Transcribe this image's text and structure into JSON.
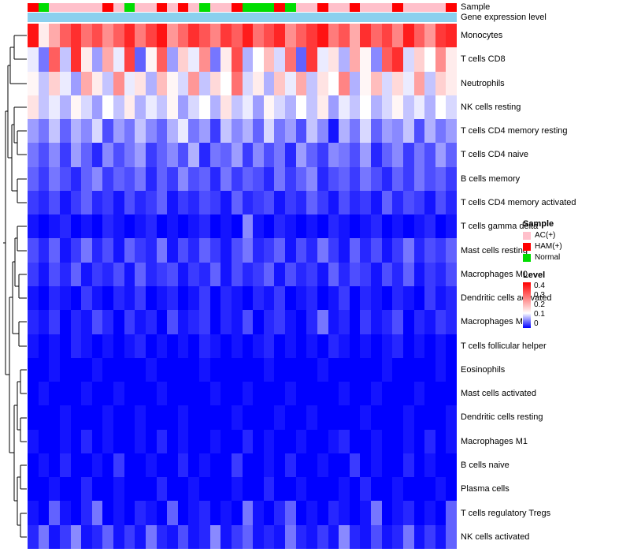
{
  "annotations": {
    "sample_label": "Sample",
    "expression_label": "Gene expression level",
    "expression_bar_color": "#8AD0EE",
    "sample_colors": {
      "AC(+)": "#FFC0CB",
      "HAM(+)": "#FF0000",
      "Normal": "#00DD00"
    }
  },
  "legend": {
    "sample_title": "Sample",
    "sample_items": [
      {
        "label": "AC(+)",
        "color": "#FFC0CB"
      },
      {
        "label": "HAM(+)",
        "color": "#FF0000"
      },
      {
        "label": "Normal",
        "color": "#00DD00"
      }
    ],
    "level_title": "Level",
    "level_ticks": [
      "0.4",
      "0.3",
      "0.2",
      "0.1",
      "0"
    ]
  },
  "chart_data": {
    "type": "heatmap",
    "title": "",
    "n_columns": 40,
    "rows": [
      "Monocytes",
      "T cells CD8",
      "Neutrophils",
      "NK cells resting",
      "T cells CD4 memory resting",
      "T cells CD4 naive",
      "B cells memory",
      "T cells CD4 memory activated",
      "T cells gamma delta",
      "Mast cells resting",
      "Macrophages M0",
      "Dendritic cells activated",
      "Macrophages M2",
      "T cells follicular helper",
      "Eosinophils",
      "Mast cells activated",
      "Dendritic cells resting",
      "Macrophages M1",
      "B cells naive",
      "Plasma cells",
      "T cells regulatory Tregs",
      "NK cells activated"
    ],
    "column_samples": [
      "HAM(+)",
      "Normal",
      "AC(+)",
      "AC(+)",
      "AC(+)",
      "AC(+)",
      "AC(+)",
      "HAM(+)",
      "AC(+)",
      "Normal",
      "AC(+)",
      "AC(+)",
      "HAM(+)",
      "AC(+)",
      "HAM(+)",
      "AC(+)",
      "Normal",
      "AC(+)",
      "AC(+)",
      "HAM(+)",
      "Normal",
      "Normal",
      "Normal",
      "HAM(+)",
      "Normal",
      "AC(+)",
      "AC(+)",
      "HAM(+)",
      "AC(+)",
      "AC(+)",
      "HAM(+)",
      "AC(+)",
      "AC(+)",
      "AC(+)",
      "HAM(+)",
      "AC(+)",
      "AC(+)",
      "AC(+)",
      "AC(+)",
      "HAM(+)"
    ],
    "colormap": {
      "min": 0,
      "mid": 0.13,
      "max": 0.4,
      "min_color": "#0000FF",
      "mid_color": "#FFFFFF",
      "max_color": "#FF0000"
    },
    "values": [
      [
        0.38,
        0.15,
        0.22,
        0.3,
        0.35,
        0.28,
        0.32,
        0.25,
        0.3,
        0.36,
        0.27,
        0.33,
        0.38,
        0.24,
        0.29,
        0.35,
        0.31,
        0.26,
        0.34,
        0.3,
        0.37,
        0.28,
        0.32,
        0.36,
        0.25,
        0.3,
        0.34,
        0.38,
        0.27,
        0.31,
        0.22,
        0.35,
        0.29,
        0.33,
        0.26,
        0.37,
        0.3,
        0.24,
        0.34,
        0.36
      ],
      [
        0.12,
        0.06,
        0.3,
        0.1,
        0.35,
        0.15,
        0.08,
        0.22,
        0.12,
        0.33,
        0.05,
        0.14,
        0.3,
        0.08,
        0.18,
        0.12,
        0.25,
        0.06,
        0.15,
        0.32,
        0.09,
        0.13,
        0.2,
        0.11,
        0.28,
        0.05,
        0.34,
        0.12,
        0.16,
        0.09,
        0.22,
        0.14,
        0.07,
        0.3,
        0.35,
        0.11,
        0.18,
        0.13,
        0.25,
        0.15
      ],
      [
        0.14,
        0.1,
        0.18,
        0.12,
        0.08,
        0.22,
        0.15,
        0.1,
        0.25,
        0.12,
        0.16,
        0.09,
        0.2,
        0.14,
        0.11,
        0.24,
        0.1,
        0.17,
        0.13,
        0.28,
        0.11,
        0.15,
        0.09,
        0.19,
        0.12,
        0.22,
        0.1,
        0.16,
        0.13,
        0.26,
        0.09,
        0.14,
        0.2,
        0.11,
        0.17,
        0.12,
        0.23,
        0.1,
        0.18,
        0.15
      ],
      [
        0.16,
        0.1,
        0.12,
        0.09,
        0.14,
        0.11,
        0.08,
        0.13,
        0.1,
        0.15,
        0.09,
        0.12,
        0.1,
        0.14,
        0.08,
        0.11,
        0.13,
        0.09,
        0.16,
        0.1,
        0.12,
        0.08,
        0.14,
        0.11,
        0.09,
        0.13,
        0.1,
        0.15,
        0.08,
        0.12,
        0.1,
        0.13,
        0.09,
        0.11,
        0.14,
        0.1,
        0.12,
        0.09,
        0.13,
        0.11
      ],
      [
        0.08,
        0.06,
        0.1,
        0.05,
        0.09,
        0.07,
        0.11,
        0.04,
        0.08,
        0.06,
        0.1,
        0.07,
        0.05,
        0.09,
        0.12,
        0.06,
        0.08,
        0.03,
        0.1,
        0.07,
        0.09,
        0.05,
        0.11,
        0.06,
        0.08,
        0.04,
        0.1,
        0.07,
        0.01,
        0.09,
        0.06,
        0.11,
        0.05,
        0.08,
        0.07,
        0.1,
        0.04,
        0.09,
        0.06,
        0.08
      ],
      [
        0.06,
        0.04,
        0.07,
        0.03,
        0.08,
        0.05,
        0.02,
        0.07,
        0.04,
        0.06,
        0.08,
        0.03,
        0.05,
        0.07,
        0.04,
        0.09,
        0.02,
        0.06,
        0.05,
        0.08,
        0.03,
        0.07,
        0.04,
        0.06,
        0.02,
        0.08,
        0.05,
        0.03,
        0.07,
        0.06,
        0.04,
        0.08,
        0.02,
        0.05,
        0.07,
        0.03,
        0.06,
        0.04,
        0.08,
        0.05
      ],
      [
        0.05,
        0.03,
        0.06,
        0.04,
        0.02,
        0.05,
        0.07,
        0.03,
        0.05,
        0.04,
        0.06,
        0.02,
        0.05,
        0.03,
        0.07,
        0.04,
        0.05,
        0.02,
        0.06,
        0.03,
        0.05,
        0.04,
        0.02,
        0.06,
        0.03,
        0.05,
        0.07,
        0.02,
        0.04,
        0.05,
        0.03,
        0.06,
        0.04,
        0.02,
        0.05,
        0.03,
        0.06,
        0.04,
        0.05,
        0.03
      ],
      [
        0.03,
        0.02,
        0.04,
        0.01,
        0.03,
        0.05,
        0.02,
        0.03,
        0.01,
        0.04,
        0.02,
        0.03,
        0.05,
        0.01,
        0.03,
        0.02,
        0.04,
        0.03,
        0.01,
        0.05,
        0.02,
        0.03,
        0.04,
        0.01,
        0.03,
        0.02,
        0.05,
        0.03,
        0.01,
        0.04,
        0.02,
        0.03,
        0.01,
        0.05,
        0.02,
        0.04,
        0.03,
        0.01,
        0.04,
        0.02
      ],
      [
        0.01,
        0.0,
        0.01,
        0.02,
        0.0,
        0.01,
        0.0,
        0.02,
        0.01,
        0.0,
        0.01,
        0.02,
        0.0,
        0.01,
        0.0,
        0.01,
        0.02,
        0.0,
        0.01,
        0.0,
        0.07,
        0.01,
        0.0,
        0.02,
        0.01,
        0.0,
        0.01,
        0.0,
        0.02,
        0.01,
        0.0,
        0.01,
        0.02,
        0.0,
        0.01,
        0.0,
        0.01,
        0.02,
        0.0,
        0.01
      ],
      [
        0.04,
        0.02,
        0.05,
        0.01,
        0.03,
        0.06,
        0.02,
        0.04,
        0.01,
        0.05,
        0.03,
        0.02,
        0.06,
        0.01,
        0.04,
        0.02,
        0.05,
        0.03,
        0.01,
        0.04,
        0.06,
        0.02,
        0.03,
        0.05,
        0.01,
        0.04,
        0.02,
        0.06,
        0.03,
        0.01,
        0.05,
        0.02,
        0.04,
        0.01,
        0.03,
        0.06,
        0.02,
        0.04,
        0.03,
        0.05
      ],
      [
        0.03,
        0.01,
        0.04,
        0.02,
        0.05,
        0.01,
        0.03,
        0.02,
        0.04,
        0.01,
        0.05,
        0.02,
        0.03,
        0.04,
        0.01,
        0.03,
        0.02,
        0.05,
        0.01,
        0.04,
        0.02,
        0.03,
        0.05,
        0.01,
        0.04,
        0.02,
        0.03,
        0.01,
        0.05,
        0.02,
        0.04,
        0.03,
        0.01,
        0.04,
        0.02,
        0.05,
        0.01,
        0.03,
        0.02,
        0.04
      ],
      [
        0.01,
        0.0,
        0.02,
        0.01,
        0.0,
        0.03,
        0.01,
        0.0,
        0.02,
        0.01,
        0.03,
        0.0,
        0.01,
        0.02,
        0.0,
        0.01,
        0.03,
        0.0,
        0.02,
        0.01,
        0.0,
        0.02,
        0.01,
        0.03,
        0.0,
        0.01,
        0.02,
        0.0,
        0.01,
        0.03,
        0.0,
        0.02,
        0.01,
        0.0,
        0.02,
        0.01,
        0.0,
        0.03,
        0.01,
        0.02
      ],
      [
        0.02,
        0.01,
        0.03,
        0.0,
        0.02,
        0.01,
        0.04,
        0.02,
        0.0,
        0.03,
        0.01,
        0.02,
        0.0,
        0.04,
        0.01,
        0.02,
        0.03,
        0.0,
        0.02,
        0.01,
        0.04,
        0.0,
        0.02,
        0.03,
        0.01,
        0.0,
        0.02,
        0.06,
        0.01,
        0.02,
        0.0,
        0.03,
        0.01,
        0.02,
        0.04,
        0.0,
        0.02,
        0.01,
        0.03,
        0.02
      ],
      [
        0.01,
        0.0,
        0.01,
        0.0,
        0.02,
        0.01,
        0.0,
        0.01,
        0.0,
        0.01,
        0.02,
        0.0,
        0.01,
        0.0,
        0.01,
        0.0,
        0.02,
        0.01,
        0.0,
        0.01,
        0.0,
        0.01,
        0.02,
        0.0,
        0.01,
        0.0,
        0.01,
        0.0,
        0.02,
        0.01,
        0.0,
        0.01,
        0.0,
        0.01,
        0.02,
        0.0,
        0.01,
        0.0,
        0.01,
        0.0
      ],
      [
        0.0,
        0.0,
        0.01,
        0.0,
        0.0,
        0.0,
        0.01,
        0.0,
        0.0,
        0.0,
        0.0,
        0.01,
        0.0,
        0.0,
        0.0,
        0.0,
        0.01,
        0.0,
        0.0,
        0.0,
        0.0,
        0.0,
        0.01,
        0.0,
        0.0,
        0.0,
        0.0,
        0.01,
        0.0,
        0.0,
        0.0,
        0.0,
        0.0,
        0.01,
        0.0,
        0.0,
        0.0,
        0.0,
        0.01,
        0.0
      ],
      [
        0.0,
        0.01,
        0.0,
        0.0,
        0.0,
        0.01,
        0.0,
        0.0,
        0.01,
        0.0,
        0.0,
        0.0,
        0.01,
        0.0,
        0.0,
        0.0,
        0.0,
        0.01,
        0.0,
        0.0,
        0.01,
        0.0,
        0.0,
        0.0,
        0.01,
        0.0,
        0.0,
        0.0,
        0.0,
        0.01,
        0.0,
        0.0,
        0.01,
        0.0,
        0.0,
        0.0,
        0.01,
        0.0,
        0.0,
        0.0
      ],
      [
        0.0,
        0.0,
        0.0,
        0.01,
        0.0,
        0.0,
        0.0,
        0.01,
        0.0,
        0.0,
        0.01,
        0.0,
        0.0,
        0.0,
        0.01,
        0.0,
        0.0,
        0.0,
        0.0,
        0.01,
        0.0,
        0.0,
        0.0,
        0.01,
        0.0,
        0.0,
        0.01,
        0.0,
        0.0,
        0.0,
        0.0,
        0.01,
        0.0,
        0.0,
        0.0,
        0.01,
        0.0,
        0.0,
        0.0,
        0.01
      ],
      [
        0.01,
        0.0,
        0.0,
        0.01,
        0.0,
        0.02,
        0.0,
        0.01,
        0.0,
        0.0,
        0.01,
        0.0,
        0.02,
        0.0,
        0.01,
        0.0,
        0.0,
        0.01,
        0.0,
        0.0,
        0.02,
        0.0,
        0.01,
        0.0,
        0.0,
        0.01,
        0.0,
        0.0,
        0.01,
        0.02,
        0.0,
        0.0,
        0.01,
        0.0,
        0.0,
        0.01,
        0.0,
        0.02,
        0.0,
        0.01
      ],
      [
        0.0,
        0.01,
        0.0,
        0.02,
        0.0,
        0.0,
        0.01,
        0.0,
        0.03,
        0.0,
        0.0,
        0.01,
        0.0,
        0.0,
        0.02,
        0.0,
        0.01,
        0.0,
        0.0,
        0.03,
        0.0,
        0.0,
        0.01,
        0.0,
        0.02,
        0.0,
        0.0,
        0.01,
        0.0,
        0.0,
        0.03,
        0.0,
        0.01,
        0.0,
        0.0,
        0.02,
        0.0,
        0.01,
        0.0,
        0.0
      ],
      [
        0.0,
        0.0,
        0.01,
        0.0,
        0.0,
        0.02,
        0.0,
        0.0,
        0.01,
        0.0,
        0.0,
        0.0,
        0.02,
        0.0,
        0.0,
        0.01,
        0.0,
        0.0,
        0.0,
        0.01,
        0.0,
        0.0,
        0.02,
        0.0,
        0.0,
        0.01,
        0.0,
        0.0,
        0.0,
        0.01,
        0.0,
        0.02,
        0.0,
        0.0,
        0.01,
        0.0,
        0.0,
        0.0,
        0.01,
        0.0
      ],
      [
        0.01,
        0.0,
        0.05,
        0.01,
        0.0,
        0.02,
        0.06,
        0.0,
        0.01,
        0.0,
        0.02,
        0.01,
        0.0,
        0.05,
        0.0,
        0.01,
        0.02,
        0.0,
        0.01,
        0.0,
        0.06,
        0.01,
        0.0,
        0.02,
        0.05,
        0.0,
        0.01,
        0.0,
        0.02,
        0.01,
        0.0,
        0.01,
        0.06,
        0.0,
        0.01,
        0.02,
        0.0,
        0.01,
        0.0,
        0.05
      ],
      [
        0.02,
        0.06,
        0.01,
        0.03,
        0.07,
        0.01,
        0.02,
        0.05,
        0.01,
        0.03,
        0.01,
        0.06,
        0.02,
        0.01,
        0.04,
        0.01,
        0.02,
        0.07,
        0.01,
        0.03,
        0.05,
        0.01,
        0.02,
        0.01,
        0.06,
        0.02,
        0.01,
        0.03,
        0.01,
        0.07,
        0.02,
        0.01,
        0.04,
        0.01,
        0.02,
        0.06,
        0.01,
        0.03,
        0.01,
        0.05
      ]
    ]
  }
}
